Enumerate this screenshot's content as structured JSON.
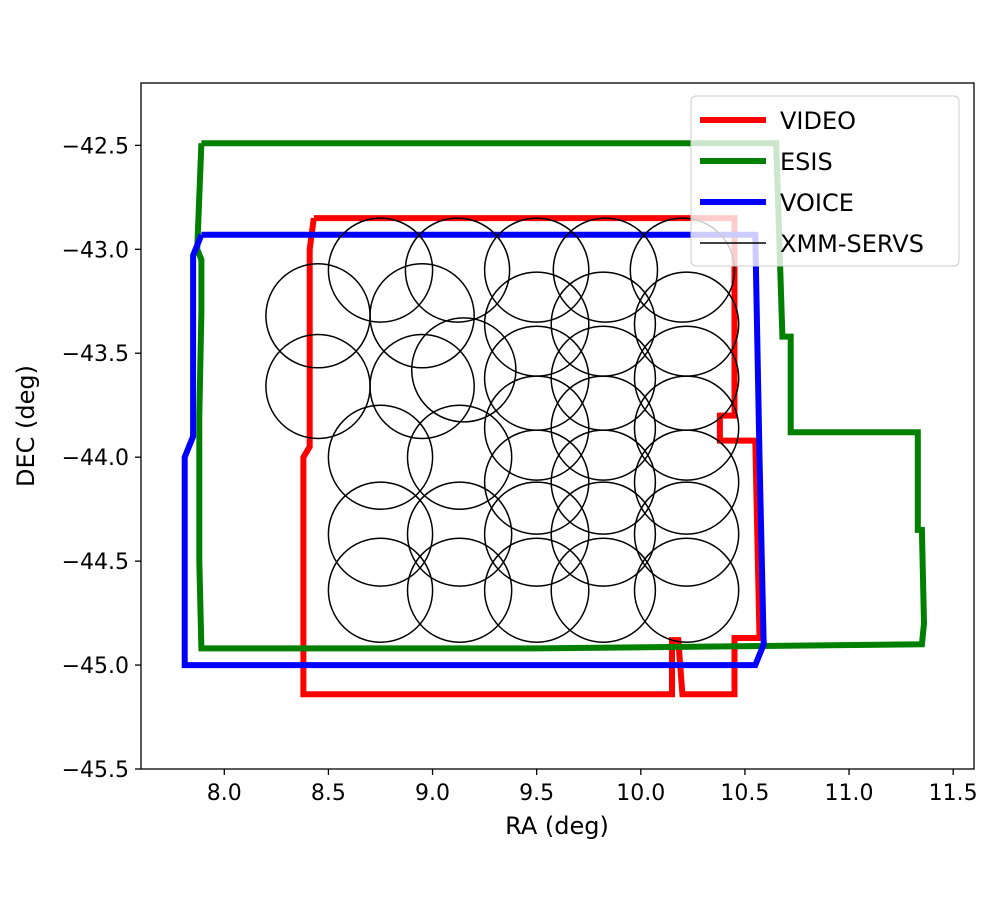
{
  "chart_data": {
    "type": "line",
    "xlabel": "RA (deg)",
    "ylabel": "DEC (deg)",
    "xlim": [
      7.6,
      11.6
    ],
    "ylim": [
      -45.5,
      -42.2
    ],
    "x_ticks": [
      "8.0",
      "8.5",
      "9.0",
      "9.5",
      "10.0",
      "10.5",
      "11.0",
      "11.5"
    ],
    "y_ticks": [
      "−42.5",
      "−43.0",
      "−43.5",
      "−44.0",
      "−44.5",
      "−45.0",
      "−45.5"
    ],
    "grid": false,
    "legend_position": "top-right",
    "series": [
      {
        "name": "VIDEO",
        "color": "#ff0000",
        "points": [
          [
            8.43,
            -42.85
          ],
          [
            10.45,
            -42.85
          ],
          [
            10.45,
            -43.8
          ],
          [
            10.38,
            -43.8
          ],
          [
            10.38,
            -43.92
          ],
          [
            10.55,
            -43.92
          ],
          [
            10.57,
            -44.87
          ],
          [
            10.45,
            -44.87
          ],
          [
            10.45,
            -45.14
          ],
          [
            10.2,
            -45.14
          ],
          [
            10.18,
            -44.88
          ],
          [
            10.15,
            -44.88
          ],
          [
            10.15,
            -45.14
          ],
          [
            8.38,
            -45.14
          ],
          [
            8.38,
            -44.0
          ],
          [
            8.41,
            -43.95
          ],
          [
            8.41,
            -43.0
          ],
          [
            8.43,
            -42.85
          ]
        ]
      },
      {
        "name": "ESIS",
        "color": "#008000",
        "points": [
          [
            7.89,
            -42.49
          ],
          [
            10.65,
            -42.49
          ],
          [
            10.68,
            -43.42
          ],
          [
            10.72,
            -43.42
          ],
          [
            10.72,
            -43.88
          ],
          [
            11.33,
            -43.88
          ],
          [
            11.33,
            -44.35
          ],
          [
            11.35,
            -44.35
          ],
          [
            11.36,
            -44.8
          ],
          [
            11.35,
            -44.9
          ],
          [
            9.5,
            -44.92
          ],
          [
            7.89,
            -44.92
          ],
          [
            7.88,
            -44.5
          ],
          [
            7.88,
            -44.05
          ],
          [
            7.88,
            -43.8
          ],
          [
            7.89,
            -43.3
          ],
          [
            7.89,
            -43.05
          ],
          [
            7.87,
            -43.0
          ],
          [
            7.89,
            -42.49
          ]
        ]
      },
      {
        "name": "VOICE",
        "color": "#0000ff",
        "points": [
          [
            7.89,
            -42.93
          ],
          [
            10.55,
            -42.93
          ],
          [
            10.57,
            -44.0
          ],
          [
            10.59,
            -44.9
          ],
          [
            10.55,
            -45.0
          ],
          [
            7.81,
            -45.0
          ],
          [
            7.81,
            -44.0
          ],
          [
            7.85,
            -43.9
          ],
          [
            7.85,
            -43.03
          ],
          [
            7.89,
            -42.93
          ]
        ]
      },
      {
        "name": "XMM-SERVS",
        "color": "#000000",
        "circle_radius": 0.25,
        "circles": [
          [
            8.45,
            -43.32
          ],
          [
            8.45,
            -43.66
          ],
          [
            8.75,
            -43.1
          ],
          [
            9.12,
            -43.1
          ],
          [
            9.5,
            -43.1
          ],
          [
            9.83,
            -43.1
          ],
          [
            10.2,
            -43.1
          ],
          [
            8.95,
            -43.32
          ],
          [
            8.95,
            -43.66
          ],
          [
            9.15,
            -43.58
          ],
          [
            9.5,
            -43.36
          ],
          [
            9.82,
            -43.36
          ],
          [
            10.22,
            -43.36
          ],
          [
            9.5,
            -43.62
          ],
          [
            9.82,
            -43.62
          ],
          [
            10.22,
            -43.62
          ],
          [
            9.5,
            -43.86
          ],
          [
            9.82,
            -43.86
          ],
          [
            10.22,
            -43.86
          ],
          [
            8.75,
            -44.0
          ],
          [
            9.13,
            -44.0
          ],
          [
            9.5,
            -44.12
          ],
          [
            9.82,
            -44.12
          ],
          [
            10.22,
            -44.12
          ],
          [
            8.75,
            -44.37
          ],
          [
            9.13,
            -44.37
          ],
          [
            9.5,
            -44.37
          ],
          [
            9.82,
            -44.37
          ],
          [
            10.22,
            -44.37
          ],
          [
            8.75,
            -44.64
          ],
          [
            9.13,
            -44.64
          ],
          [
            9.5,
            -44.64
          ],
          [
            9.82,
            -44.64
          ],
          [
            10.22,
            -44.64
          ]
        ]
      }
    ]
  }
}
